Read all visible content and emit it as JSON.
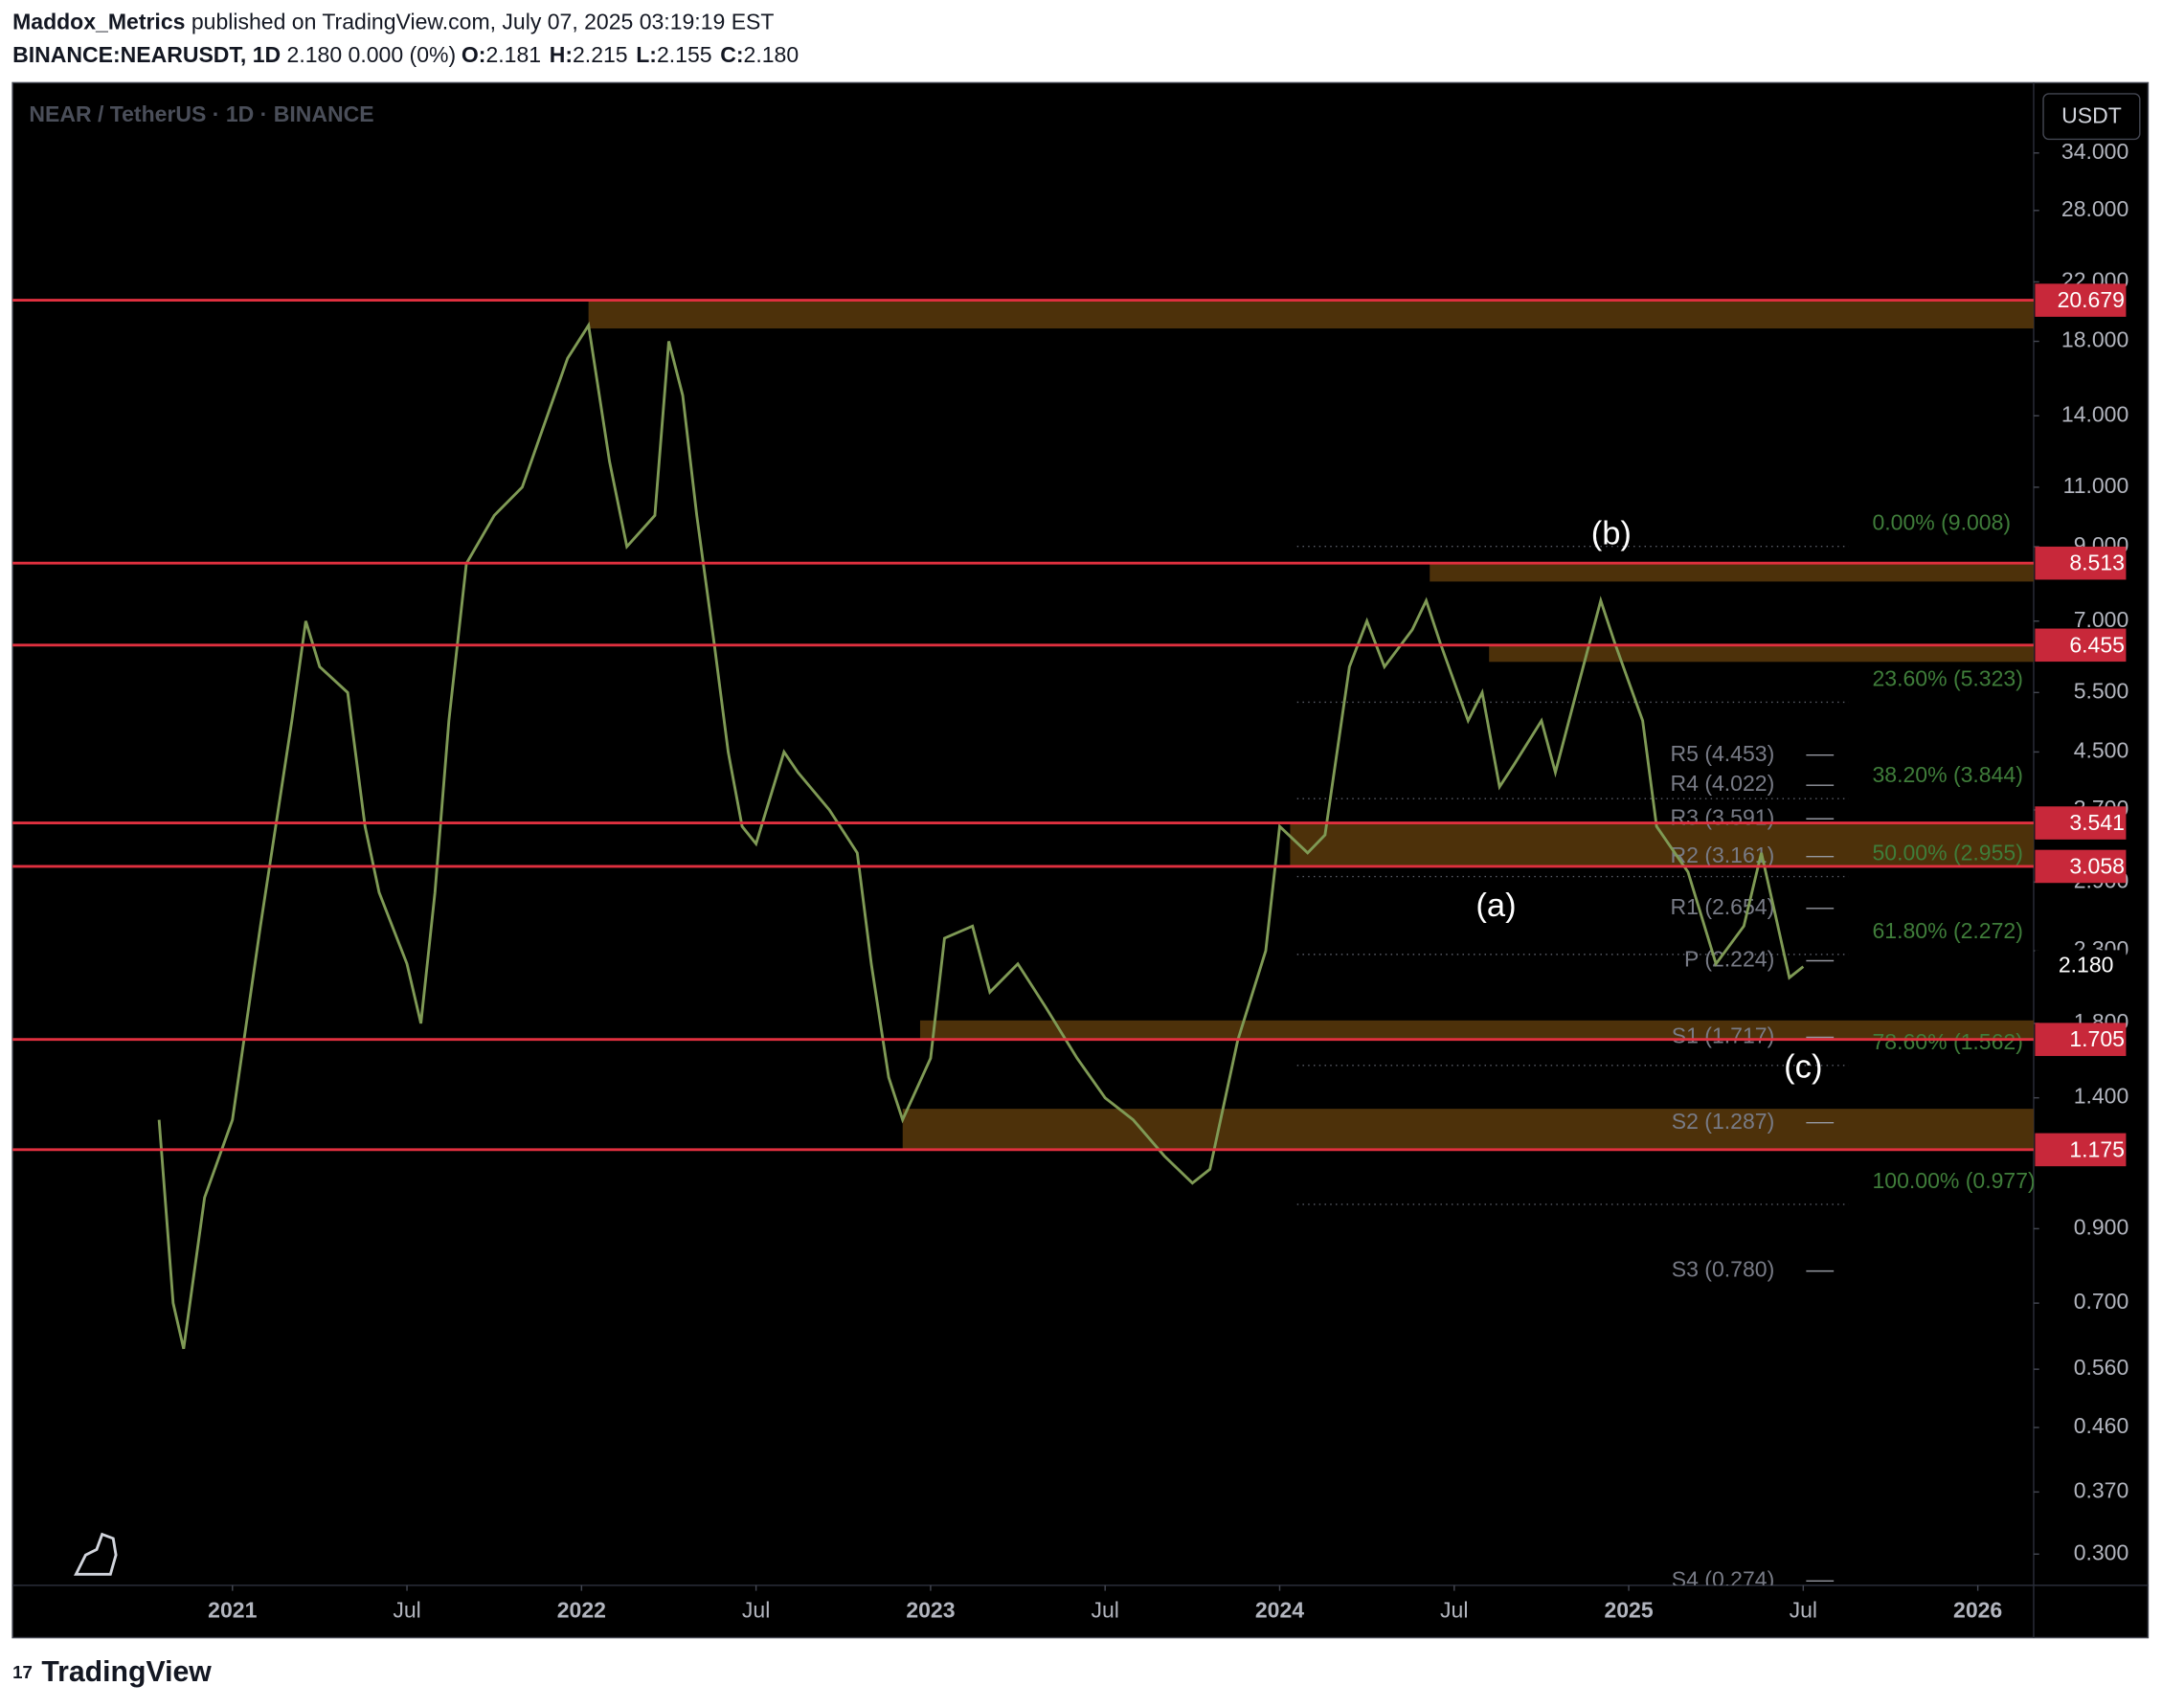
{
  "header": {
    "author": "Maddox_Metrics",
    "published": "published on TradingView.com, July 07, 2025 03:19:19 EST",
    "symbol": "BINANCE:NEARUSDT, 1D",
    "change": "2.180 0.000 (0%)",
    "ohlc": [
      {
        "key": "O:",
        "value": "2.181"
      },
      {
        "key": "H:",
        "value": "2.215"
      },
      {
        "key": "L:",
        "value": "2.155"
      },
      {
        "key": "C:",
        "value": "2.180"
      }
    ]
  },
  "legend_title": "NEAR / TetherUS · 1D · BINANCE",
  "currency_button": "USDT",
  "footer": "TradingView",
  "chart_data": {
    "type": "line",
    "log_scale": true,
    "color": "#7f9a55",
    "x": [
      2020.79,
      2020.83,
      2020.86,
      2020.92,
      2021.0,
      2021.08,
      2021.17,
      2021.21,
      2021.25,
      2021.33,
      2021.38,
      2021.42,
      2021.5,
      2021.54,
      2021.58,
      2021.62,
      2021.67,
      2021.75,
      2021.83,
      2021.88,
      2021.96,
      2022.02,
      2022.08,
      2022.13,
      2022.21,
      2022.25,
      2022.29,
      2022.33,
      2022.38,
      2022.42,
      2022.46,
      2022.5,
      2022.58,
      2022.62,
      2022.71,
      2022.79,
      2022.83,
      2022.88,
      2022.92,
      2023.0,
      2023.04,
      2023.12,
      2023.17,
      2023.25,
      2023.33,
      2023.42,
      2023.5,
      2023.58,
      2023.67,
      2023.75,
      2023.8,
      2023.88,
      2023.96,
      2024.0,
      2024.08,
      2024.13,
      2024.2,
      2024.25,
      2024.3,
      2024.38,
      2024.42,
      2024.46,
      2024.54,
      2024.58,
      2024.63,
      2024.67,
      2024.75,
      2024.79,
      2024.85,
      2024.92,
      2024.96,
      2025.04,
      2025.08,
      2025.17,
      2025.25,
      2025.33,
      2025.38,
      2025.42,
      2025.46,
      2025.5
    ],
    "values": [
      1.3,
      0.7,
      0.6,
      1.0,
      1.3,
      2.5,
      5.0,
      7.0,
      6.0,
      5.5,
      3.5,
      2.8,
      2.2,
      1.8,
      2.8,
      5.0,
      8.5,
      10.0,
      11.0,
      13.0,
      17.0,
      19.0,
      12.0,
      9.0,
      10.0,
      18.0,
      15.0,
      10.0,
      6.5,
      4.5,
      3.5,
      3.3,
      4.5,
      4.2,
      3.7,
      3.2,
      2.2,
      1.5,
      1.3,
      1.6,
      2.4,
      2.5,
      2.0,
      2.2,
      1.9,
      1.6,
      1.4,
      1.3,
      1.15,
      1.05,
      1.1,
      1.7,
      2.3,
      3.5,
      3.2,
      3.4,
      6.0,
      7.0,
      6.0,
      6.8,
      7.5,
      6.5,
      5.0,
      5.5,
      4.0,
      4.3,
      5.0,
      4.2,
      5.5,
      7.5,
      6.5,
      5.0,
      3.5,
      3.0,
      2.2,
      2.5,
      3.2,
      2.6,
      2.1,
      2.18
    ],
    "ylim": [
      0.27,
      43.1
    ],
    "yticks": [
      {
        "value": 34,
        "label": "34.000"
      },
      {
        "value": 28,
        "label": "28.000"
      },
      {
        "value": 22,
        "label": "22.000"
      },
      {
        "value": 18,
        "label": "18.000"
      },
      {
        "value": 14,
        "label": "14.000"
      },
      {
        "value": 11,
        "label": "11.000"
      },
      {
        "value": 9,
        "label": "9.000"
      },
      {
        "value": 7,
        "label": "7.000"
      },
      {
        "value": 5.5,
        "label": "5.500"
      },
      {
        "value": 4.5,
        "label": "4.500"
      },
      {
        "value": 3.7,
        "label": "3.700"
      },
      {
        "value": 2.9,
        "label": "2.900"
      },
      {
        "value": 2.3,
        "label": "2.300"
      },
      {
        "value": 1.8,
        "label": "1.800"
      },
      {
        "value": 1.4,
        "label": "1.400"
      },
      {
        "value": 0.9,
        "label": "0.900"
      },
      {
        "value": 0.7,
        "label": "0.700"
      },
      {
        "value": 0.56,
        "label": "0.560"
      },
      {
        "value": 0.46,
        "label": "0.460"
      },
      {
        "value": 0.37,
        "label": "0.370"
      },
      {
        "value": 0.3,
        "label": "0.300"
      }
    ],
    "xlim": [
      2020.37,
      2026.16
    ],
    "xticks": [
      {
        "value": 2021,
        "label": "2021"
      },
      {
        "value": 2021.5,
        "label": "Jul"
      },
      {
        "value": 2022,
        "label": "2022"
      },
      {
        "value": 2022.5,
        "label": "Jul"
      },
      {
        "value": 2023,
        "label": "2023"
      },
      {
        "value": 2023.5,
        "label": "Jul"
      },
      {
        "value": 2024,
        "label": "2024"
      },
      {
        "value": 2024.5,
        "label": "Jul"
      },
      {
        "value": 2025,
        "label": "2025"
      },
      {
        "value": 2025.5,
        "label": "Jul"
      },
      {
        "value": 2026,
        "label": "2026"
      }
    ],
    "levels": [
      {
        "value": 20.679,
        "label": "20.679"
      },
      {
        "value": 8.513,
        "label": "8.513"
      },
      {
        "value": 6.455,
        "label": "6.455"
      },
      {
        "value": 3.541,
        "label": "3.541"
      },
      {
        "value": 3.058,
        "label": "3.058"
      },
      {
        "value": 1.705,
        "label": "1.705"
      },
      {
        "value": 1.175,
        "label": "1.175"
      }
    ],
    "current_price": {
      "value": 2.18,
      "label": "2.180"
    },
    "zones": [
      {
        "x0": 2022.02,
        "top": 20.679,
        "bottom": 18.8
      },
      {
        "x0": 2024.43,
        "top": 8.513,
        "bottom": 8.0
      },
      {
        "x0": 2024.6,
        "top": 6.455,
        "bottom": 6.1
      },
      {
        "x0": 2024.03,
        "top": 3.541,
        "bottom": 3.058
      },
      {
        "x0": 2022.97,
        "top": 1.818,
        "bottom": 1.705
      },
      {
        "x0": 2022.92,
        "top": 1.349,
        "bottom": 1.175
      }
    ],
    "fib_range": [
      2024.05,
      2025.63
    ],
    "fib": [
      {
        "value": 9.008,
        "label": "0.00% (9.008)"
      },
      {
        "value": 5.323,
        "label": "23.60% (5.323)"
      },
      {
        "value": 3.844,
        "label": "38.20% (3.844)"
      },
      {
        "value": 2.955,
        "label": "50.00% (2.955)"
      },
      {
        "value": 2.272,
        "label": "61.80% (2.272)"
      },
      {
        "value": 1.562,
        "label": "78.60% (1.562)"
      },
      {
        "value": 0.977,
        "label": "100.00% (0.977)"
      }
    ],
    "pivots": [
      {
        "value": 4.453,
        "label": "R5 (4.453)"
      },
      {
        "value": 4.022,
        "label": "R4 (4.022)"
      },
      {
        "value": 3.591,
        "label": "R3 (3.591)"
      },
      {
        "value": 3.161,
        "label": "R2 (3.161)"
      },
      {
        "value": 2.654,
        "label": "R1 (2.654)"
      },
      {
        "value": 2.224,
        "label": "P (2.224)"
      },
      {
        "value": 1.717,
        "label": "S1 (1.717)"
      },
      {
        "value": 1.287,
        "label": "S2 (1.287)"
      },
      {
        "value": 0.78,
        "label": "S3 (0.780)"
      },
      {
        "value": 0.274,
        "label": "S4 (0.274)"
      }
    ],
    "annotations": [
      {
        "text": "(a)",
        "x": 2024.62,
        "y": 2.66
      },
      {
        "text": "(b)",
        "x": 2024.95,
        "y": 9.35
      },
      {
        "text": "(c)",
        "x": 2025.5,
        "y": 1.545
      }
    ]
  }
}
